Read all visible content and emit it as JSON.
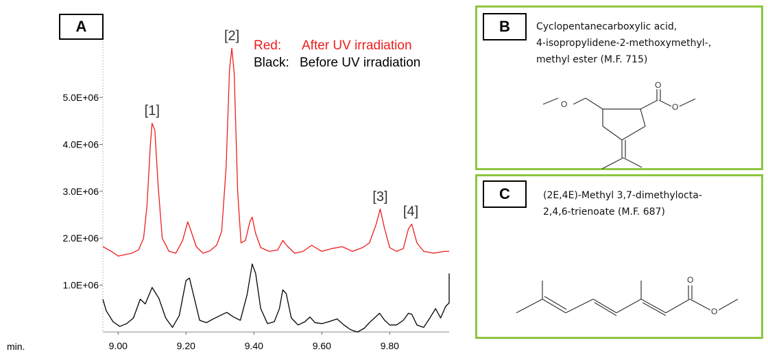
{
  "chart_data": {
    "type": "line",
    "panel_label": "A",
    "xlabel": "min.",
    "xlim": [
      8.955,
      9.975
    ],
    "ylim": [
      0,
      6200000
    ],
    "x_ticks": [
      {
        "value": 9.0,
        "label": "9.00"
      },
      {
        "value": 9.2,
        "label": "9.20"
      },
      {
        "value": 9.4,
        "label": "9.40"
      },
      {
        "value": 9.6,
        "label": "9.60"
      },
      {
        "value": 9.8,
        "label": "9.80"
      }
    ],
    "y_ticks": [
      {
        "value": 1000000,
        "label": "1.0E+06"
      },
      {
        "value": 2000000,
        "label": "2.0E+06"
      },
      {
        "value": 3000000,
        "label": "3.0E+06"
      },
      {
        "value": 4000000,
        "label": "4.0E+06"
      },
      {
        "value": 5000000,
        "label": "5.0E+06"
      }
    ],
    "legend": [
      {
        "label": "Red:",
        "text": "After UV irradiation",
        "color": "#ee1c1c"
      },
      {
        "label": "Black:",
        "text": "Before UV irradiation",
        "color": "#000000"
      }
    ],
    "series": [
      {
        "color": "#ee1c1c",
        "points": [
          [
            8.955,
            1820000.0
          ],
          [
            8.98,
            1720000.0
          ],
          [
            9.0,
            1620000.0
          ],
          [
            9.02,
            1650000.0
          ],
          [
            9.04,
            1680000.0
          ],
          [
            9.06,
            1750000.0
          ],
          [
            9.075,
            2000000.0
          ],
          [
            9.085,
            2700000.0
          ],
          [
            9.095,
            4000000.0
          ],
          [
            9.1,
            4450000.0
          ],
          [
            9.108,
            4300000.0
          ],
          [
            9.118,
            3100000.0
          ],
          [
            9.13,
            2000000.0
          ],
          [
            9.15,
            1720000.0
          ],
          [
            9.17,
            1680000.0
          ],
          [
            9.19,
            1950000.0
          ],
          [
            9.205,
            2350000.0
          ],
          [
            9.215,
            2150000.0
          ],
          [
            9.23,
            1820000.0
          ],
          [
            9.25,
            1680000.0
          ],
          [
            9.27,
            1730000.0
          ],
          [
            9.29,
            1850000.0
          ],
          [
            9.305,
            2150000.0
          ],
          [
            9.318,
            3500000.0
          ],
          [
            9.328,
            5600000.0
          ],
          [
            9.335,
            6050000.0
          ],
          [
            9.342,
            5500000.0
          ],
          [
            9.352,
            3000000.0
          ],
          [
            9.362,
            1900000.0
          ],
          [
            9.375,
            1950000.0
          ],
          [
            9.388,
            2350000.0
          ],
          [
            9.395,
            2450000.0
          ],
          [
            9.405,
            2100000.0
          ],
          [
            9.42,
            1800000.0
          ],
          [
            9.445,
            1720000.0
          ],
          [
            9.47,
            1750000.0
          ],
          [
            9.485,
            1950000.0
          ],
          [
            9.5,
            1820000.0
          ],
          [
            9.52,
            1680000.0
          ],
          [
            9.545,
            1720000.0
          ],
          [
            9.57,
            1850000.0
          ],
          [
            9.6,
            1720000.0
          ],
          [
            9.63,
            1780000.0
          ],
          [
            9.66,
            1820000.0
          ],
          [
            9.69,
            1720000.0
          ],
          [
            9.72,
            1800000.0
          ],
          [
            9.74,
            1900000.0
          ],
          [
            9.76,
            2300000.0
          ],
          [
            9.772,
            2620000.0
          ],
          [
            9.785,
            2200000.0
          ],
          [
            9.8,
            1800000.0
          ],
          [
            9.82,
            1720000.0
          ],
          [
            9.84,
            1780000.0
          ],
          [
            9.855,
            2200000.0
          ],
          [
            9.865,
            2300000.0
          ],
          [
            9.88,
            1900000.0
          ],
          [
            9.9,
            1720000.0
          ],
          [
            9.93,
            1680000.0
          ],
          [
            9.96,
            1720000.0
          ],
          [
            9.975,
            1720000.0
          ]
        ]
      },
      {
        "color": "#000000",
        "points": [
          [
            8.955,
            700000.0
          ],
          [
            8.965,
            450000.0
          ],
          [
            8.985,
            220000.0
          ],
          [
            9.005,
            120000.0
          ],
          [
            9.025,
            180000.0
          ],
          [
            9.045,
            300000.0
          ],
          [
            9.065,
            700000.0
          ],
          [
            9.08,
            600000.0
          ],
          [
            9.1,
            950000.0
          ],
          [
            9.12,
            720000.0
          ],
          [
            9.14,
            300000.0
          ],
          [
            9.16,
            100000.0
          ],
          [
            9.18,
            350000.0
          ],
          [
            9.2,
            1100000.0
          ],
          [
            9.21,
            1150000.0
          ],
          [
            9.225,
            700000.0
          ],
          [
            9.24,
            250000.0
          ],
          [
            9.26,
            200000.0
          ],
          [
            9.28,
            280000.0
          ],
          [
            9.3,
            350000.0
          ],
          [
            9.32,
            420000.0
          ],
          [
            9.34,
            320000.0
          ],
          [
            9.36,
            250000.0
          ],
          [
            9.38,
            800000.0
          ],
          [
            9.395,
            1450000.0
          ],
          [
            9.405,
            1250000.0
          ],
          [
            9.42,
            500000.0
          ],
          [
            9.44,
            180000.0
          ],
          [
            9.46,
            220000.0
          ],
          [
            9.475,
            500000.0
          ],
          [
            9.485,
            900000.0
          ],
          [
            9.495,
            820000.0
          ],
          [
            9.51,
            300000.0
          ],
          [
            9.53,
            150000.0
          ],
          [
            9.55,
            220000.0
          ],
          [
            9.565,
            320000.0
          ],
          [
            9.58,
            200000.0
          ],
          [
            9.6,
            180000.0
          ],
          [
            9.62,
            220000.0
          ],
          [
            9.645,
            280000.0
          ],
          [
            9.665,
            150000.0
          ],
          [
            9.685,
            50000.0
          ],
          [
            9.705,
            0.0
          ],
          [
            9.725,
            80000.0
          ],
          [
            9.74,
            200000.0
          ],
          [
            9.755,
            300000.0
          ],
          [
            9.77,
            400000.0
          ],
          [
            9.785,
            250000.0
          ],
          [
            9.8,
            150000.0
          ],
          [
            9.82,
            150000.0
          ],
          [
            9.84,
            250000.0
          ],
          [
            9.855,
            400000.0
          ],
          [
            9.865,
            380000.0
          ],
          [
            9.88,
            150000.0
          ],
          [
            9.9,
            100000.0
          ],
          [
            9.92,
            320000.0
          ],
          [
            9.935,
            500000.0
          ],
          [
            9.95,
            300000.0
          ],
          [
            9.965,
            550000.0
          ],
          [
            9.975,
            620000.0
          ],
          [
            9.975,
            1250000.0
          ]
        ]
      }
    ],
    "peaks": [
      {
        "label": "[1]",
        "x": 9.1,
        "y": 4450000.0
      },
      {
        "label": "[2]",
        "x": 9.335,
        "y": 6050000.0
      },
      {
        "label": "[3]",
        "x": 9.772,
        "y": 2620000.0
      },
      {
        "label": "[4]",
        "x": 9.862,
        "y": 2300000.0
      }
    ]
  },
  "panel_b": {
    "label": "B",
    "lines": [
      " Cyclopentanecarboxylic acid,",
      "4-isopropylidene-2-methoxymethyl-,",
      "methyl ester (M.F. 715)"
    ],
    "atom_labels": [
      "O",
      "O",
      "O"
    ]
  },
  "panel_c": {
    "label": "C",
    "lines": [
      "(2E,4E)-Methyl 3,7-dimethylocta-",
      "2,4,6-trienoate (M.F. 687)"
    ],
    "atom_labels": [
      "O",
      "O"
    ]
  }
}
